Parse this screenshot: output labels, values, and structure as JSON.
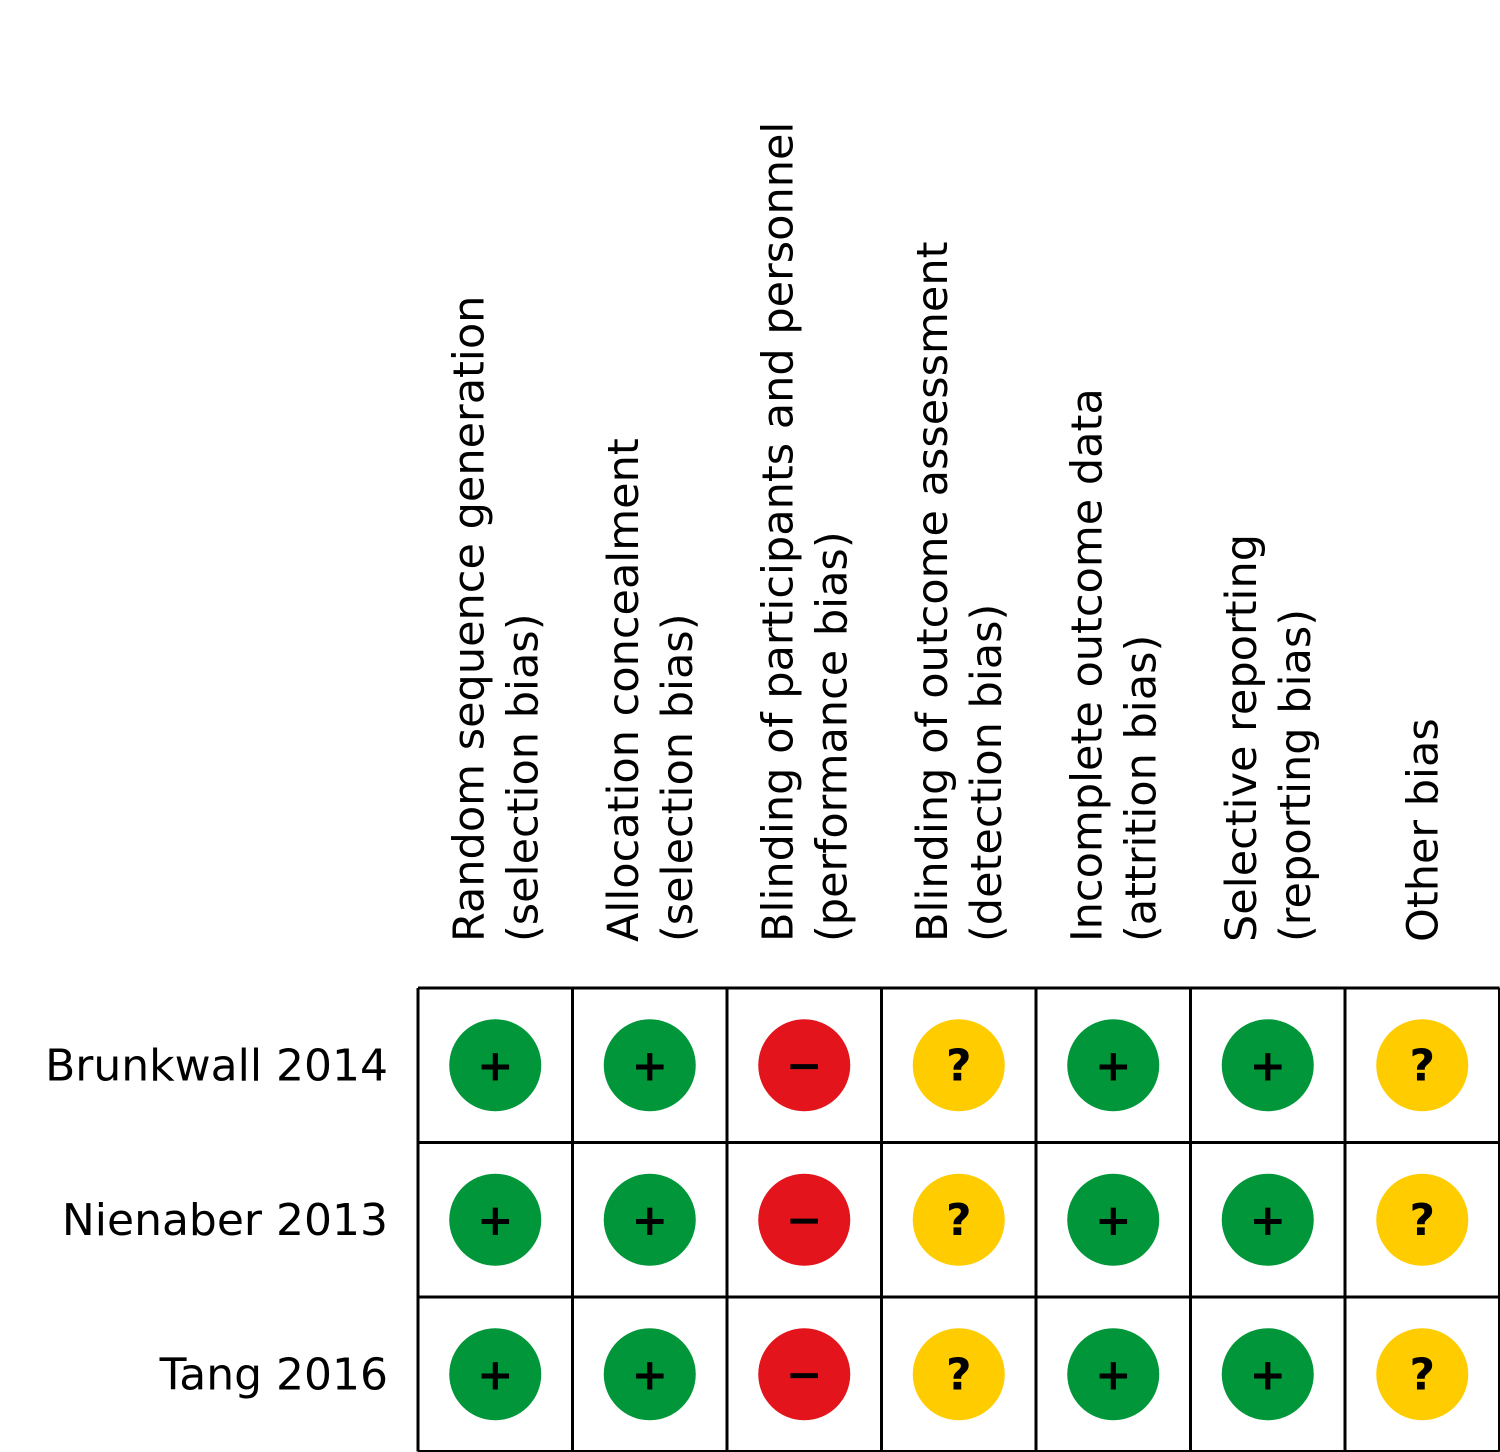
{
  "chart_data": {
    "type": "table",
    "columns": [
      {
        "line1": "Random sequence generation",
        "line2": "(selection bias)"
      },
      {
        "line1": "Allocation concealment",
        "line2": "(selection bias)"
      },
      {
        "line1": "Blinding of participants and personnel",
        "line2": "(performance bias)"
      },
      {
        "line1": "Blinding of outcome assessment",
        "line2": "(detection bias)"
      },
      {
        "line1": "Incomplete outcome data",
        "line2": "(attrition bias)"
      },
      {
        "line1": "Selective reporting",
        "line2": "(reporting bias)"
      },
      {
        "line1": "Other bias",
        "line2": ""
      }
    ],
    "rows": [
      "Brunkwall 2014",
      "Nienaber 2013",
      "Tang 2016"
    ],
    "values": [
      [
        "low",
        "low",
        "high",
        "unclear",
        "low",
        "low",
        "unclear"
      ],
      [
        "low",
        "low",
        "high",
        "unclear",
        "low",
        "low",
        "unclear"
      ],
      [
        "low",
        "low",
        "high",
        "unclear",
        "low",
        "low",
        "unclear"
      ]
    ],
    "symbols": {
      "low": "+",
      "high": "−",
      "unclear": "?"
    },
    "colors": {
      "low": "#009639",
      "high": "#e3141b",
      "unclear": "#ffcc00",
      "grid": "#000000"
    }
  }
}
